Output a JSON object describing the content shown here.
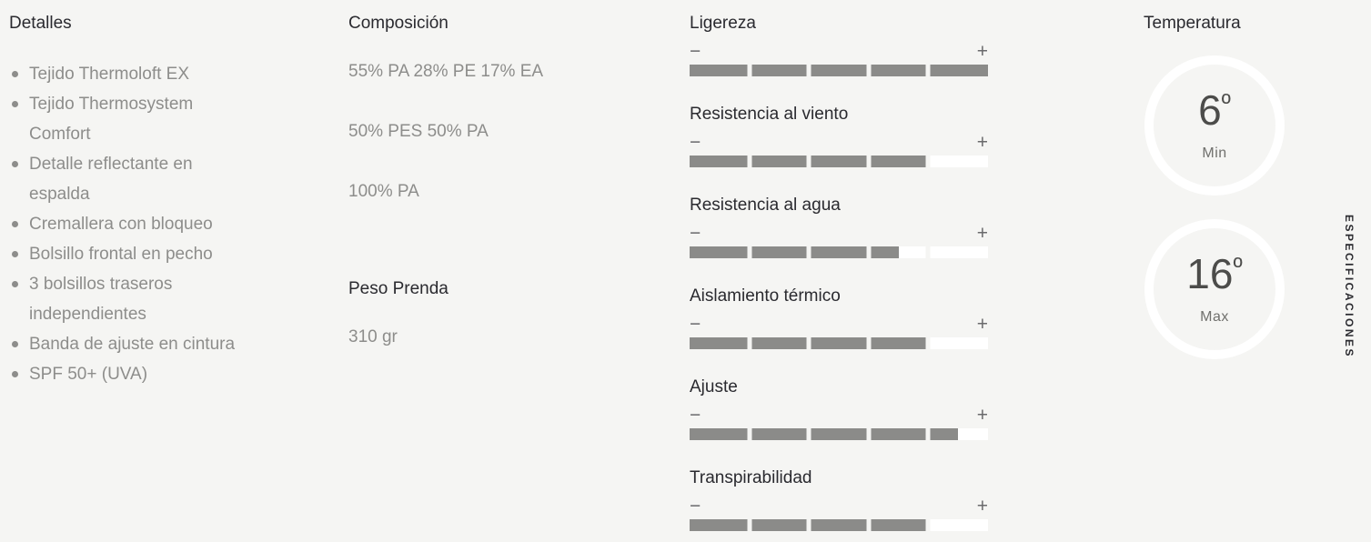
{
  "colors": {
    "background": "#f5f5f3",
    "heading_text": "#2a2a2f",
    "body_text": "#8d8d8b",
    "bar_fill": "#8b8b89",
    "bar_empty": "#ffffff",
    "circle_ring": "#ffffff"
  },
  "details": {
    "title": "Detalles",
    "items": [
      "Tejido Thermoloft EX",
      "Tejido Thermosystem Comfort",
      "Detalle reflectante en espalda",
      "Cremallera con bloqueo",
      "Bolsillo frontal en pecho",
      "3 bolsillos traseros independientes",
      "Banda de ajuste en cintura",
      "SPF 50+ (UVA)"
    ]
  },
  "composition": {
    "title": "Composición",
    "lines": [
      "55% PA 28% PE 17% EA",
      "50% PES 50% PA",
      "100% PA"
    ],
    "weight_title": "Peso Prenda",
    "weight_value": "310 gr"
  },
  "ratings": {
    "minus_label": "−",
    "plus_label": "+",
    "max": 5,
    "items": [
      {
        "label": "Ligereza",
        "value": 5
      },
      {
        "label": "Resistencia al viento",
        "value": 4
      },
      {
        "label": "Resistencia al agua",
        "value": 3.5
      },
      {
        "label": "Aislamiento térmico",
        "value": 4
      },
      {
        "label": "Ajuste",
        "value": 4.5
      },
      {
        "label": "Transpirabilidad",
        "value": 4
      }
    ]
  },
  "temperature": {
    "title": "Temperatura",
    "min": {
      "value": "6",
      "unit": "º",
      "label": "Min"
    },
    "max": {
      "value": "16",
      "unit": "º",
      "label": "Max"
    }
  },
  "side_tab": {
    "label": "ESPECIFICACIONES"
  }
}
